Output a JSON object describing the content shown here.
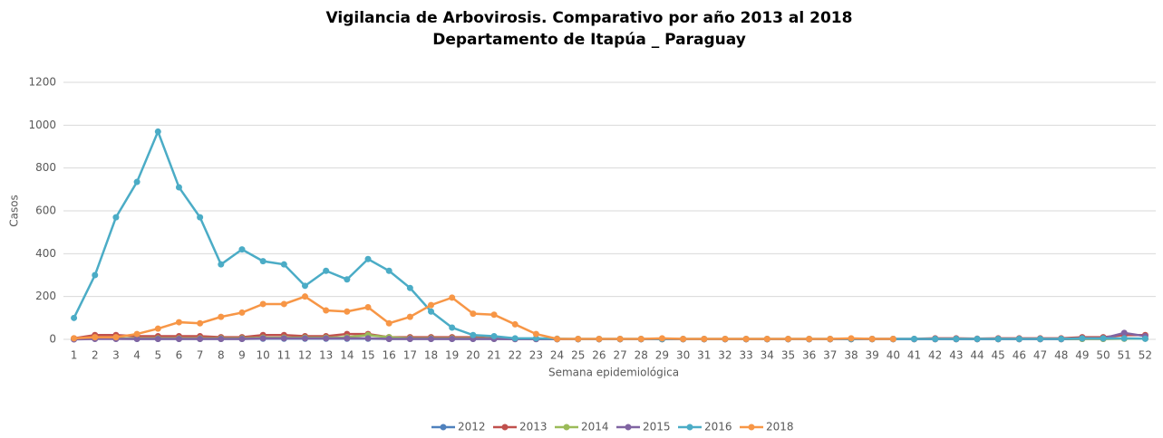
{
  "chart_data": {
    "type": "line",
    "title": "Vigilancia de Arbovirosis. Comparativo por año 2013 al  2018",
    "subtitle": "Departamento de Itapúa _ Paraguay",
    "y_label": "Casos",
    "x_label": "Semana epidemiológica",
    "categories": [
      1,
      2,
      3,
      4,
      5,
      6,
      7,
      8,
      9,
      10,
      11,
      12,
      13,
      14,
      15,
      16,
      17,
      18,
      19,
      20,
      21,
      22,
      23,
      24,
      25,
      26,
      27,
      28,
      29,
      30,
      31,
      32,
      33,
      34,
      35,
      36,
      37,
      38,
      39,
      40,
      41,
      42,
      43,
      44,
      45,
      46,
      47,
      48,
      49,
      50,
      51,
      52
    ],
    "ylim": [
      0,
      1200
    ],
    "yticks": [
      0,
      200,
      400,
      600,
      800,
      1000,
      1200
    ],
    "grid": true,
    "legend": "bottom",
    "series": [
      {
        "name": "2012",
        "color": "#4f81bd",
        "values": [
          2,
          3,
          3,
          2,
          2,
          2,
          2,
          2,
          2,
          3,
          3,
          3,
          3,
          3,
          3,
          2,
          2,
          2,
          2,
          2,
          2,
          2,
          2,
          1,
          1,
          1,
          1,
          1,
          1,
          1,
          1,
          1,
          1,
          1,
          1,
          1,
          1,
          1,
          1,
          1,
          1,
          1,
          1,
          1,
          1,
          1,
          1,
          1,
          2,
          2,
          3,
          3
        ]
      },
      {
        "name": "2013",
        "color": "#c0504d",
        "values": [
          5,
          20,
          20,
          15,
          15,
          15,
          15,
          10,
          10,
          20,
          20,
          15,
          15,
          25,
          25,
          10,
          10,
          10,
          10,
          10,
          5,
          3,
          2,
          1,
          1,
          1,
          1,
          1,
          2,
          1,
          1,
          1,
          1,
          1,
          1,
          1,
          1,
          2,
          2,
          2,
          2,
          5,
          5,
          3,
          5,
          5,
          5,
          5,
          10,
          10,
          20,
          20
        ]
      },
      {
        "name": "2014",
        "color": "#9bbb59",
        "values": [
          3,
          5,
          5,
          5,
          5,
          5,
          5,
          5,
          5,
          8,
          8,
          8,
          8,
          10,
          20,
          10,
          5,
          5,
          5,
          5,
          3,
          2,
          2,
          1,
          1,
          1,
          1,
          1,
          1,
          1,
          1,
          1,
          1,
          1,
          1,
          1,
          1,
          1,
          1,
          1,
          1,
          1,
          1,
          1,
          1,
          1,
          1,
          1,
          2,
          2,
          3,
          3
        ]
      },
      {
        "name": "2015",
        "color": "#8064a2",
        "values": [
          0,
          2,
          2,
          2,
          2,
          2,
          2,
          2,
          2,
          5,
          5,
          5,
          5,
          5,
          5,
          2,
          2,
          2,
          2,
          2,
          2,
          1,
          1,
          1,
          1,
          1,
          1,
          1,
          1,
          1,
          1,
          1,
          1,
          1,
          1,
          1,
          1,
          1,
          1,
          1,
          1,
          1,
          1,
          1,
          1,
          1,
          1,
          1,
          5,
          5,
          30,
          15
        ]
      },
      {
        "name": "2016",
        "color": "#4bacc6",
        "values": [
          100,
          300,
          570,
          735,
          970,
          710,
          570,
          350,
          420,
          365,
          350,
          250,
          320,
          280,
          375,
          320,
          240,
          130,
          55,
          20,
          15,
          5,
          5,
          3,
          2,
          2,
          2,
          2,
          2,
          2,
          2,
          2,
          2,
          2,
          2,
          2,
          2,
          2,
          2,
          2,
          2,
          2,
          2,
          2,
          2,
          2,
          2,
          2,
          5,
          5,
          5,
          3
        ]
      },
      {
        "name": "2018",
        "color": "#f79646",
        "values": [
          5,
          10,
          10,
          25,
          50,
          80,
          75,
          105,
          125,
          165,
          165,
          200,
          135,
          130,
          150,
          75,
          105,
          160,
          195,
          120,
          115,
          70,
          25,
          2,
          2,
          2,
          2,
          2,
          5,
          2,
          2,
          2,
          2,
          2,
          2,
          2,
          2,
          5,
          2,
          2,
          null,
          null,
          null,
          null,
          null,
          null,
          null,
          null,
          null,
          null,
          null,
          null
        ]
      }
    ]
  }
}
